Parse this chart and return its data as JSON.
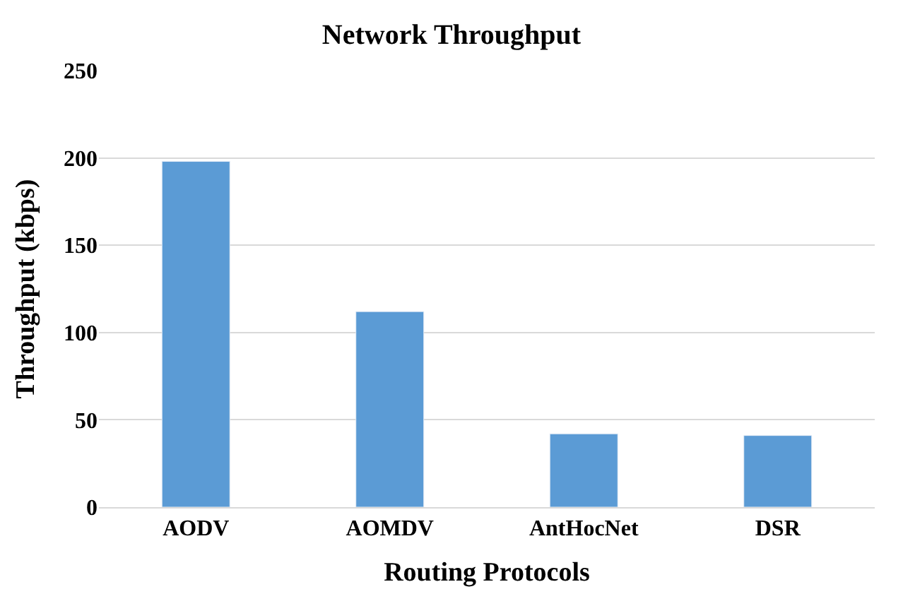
{
  "chart_data": {
    "type": "bar",
    "title": "Network Throughput",
    "xlabel": "Routing Protocols",
    "ylabel": "Throughput (kbps)",
    "categories": [
      "AODV",
      "AOMDV",
      "AntHocNet",
      "DSR"
    ],
    "values": [
      198,
      112,
      42,
      41
    ],
    "color": "#5b9bd5",
    "ylim": [
      0,
      250
    ],
    "yticks": [
      0,
      50,
      100,
      150,
      200,
      250
    ],
    "grid": "y"
  }
}
